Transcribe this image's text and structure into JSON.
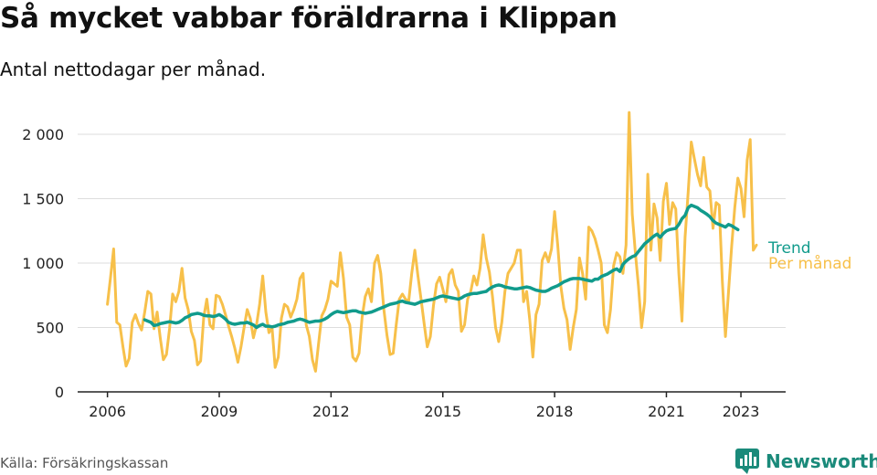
{
  "header": {
    "title": "Så mycket vabbar föräldrarna i Klippan",
    "subtitle": "Antal nettodagar per månad."
  },
  "footer": {
    "source": "Källa: Försäkringskassan",
    "brand": "Newsworthy",
    "brand_color": "#1a8a7a"
  },
  "chart_data": {
    "type": "line",
    "title": "Så mycket vabbar föräldrarna i Klippan",
    "subtitle": "Antal nettodagar per månad.",
    "xlabel": "",
    "ylabel": "",
    "x_start": "2006-01",
    "x_ticks": [
      "2006",
      "2009",
      "2012",
      "2015",
      "2018",
      "2021",
      "2023"
    ],
    "x_tick_years": [
      2006,
      2009,
      2012,
      2015,
      2018,
      2021,
      2023
    ],
    "y_ticks": [
      0,
      500,
      1000,
      1500,
      2000
    ],
    "y_tick_labels": [
      "0",
      "500",
      "1 000",
      "1 500",
      "2 000"
    ],
    "ylim": [
      0,
      2050
    ],
    "xlim": [
      2005.2,
      2024.2
    ],
    "grid": true,
    "legend": "right-end labels",
    "series": [
      {
        "name": "Per månad",
        "color": "#f7c04a",
        "start": "2006-01",
        "values": [
          680,
          890,
          1110,
          540,
          520,
          350,
          200,
          260,
          540,
          600,
          530,
          480,
          620,
          780,
          760,
          490,
          620,
          420,
          250,
          290,
          490,
          760,
          700,
          780,
          960,
          730,
          640,
          470,
          400,
          210,
          240,
          580,
          720,
          520,
          490,
          750,
          740,
          680,
          600,
          510,
          430,
          340,
          230,
          350,
          500,
          640,
          570,
          420,
          520,
          680,
          900,
          620,
          460,
          500,
          190,
          270,
          570,
          680,
          660,
          580,
          640,
          720,
          880,
          920,
          520,
          430,
          250,
          160,
          380,
          590,
          640,
          720,
          860,
          840,
          820,
          1080,
          880,
          580,
          520,
          270,
          240,
          300,
          580,
          740,
          800,
          700,
          1000,
          1060,
          920,
          640,
          440,
          290,
          300,
          520,
          720,
          760,
          720,
          700,
          920,
          1100,
          900,
          720,
          530,
          350,
          430,
          670,
          840,
          890,
          800,
          700,
          910,
          950,
          830,
          780,
          470,
          520,
          720,
          780,
          900,
          830,
          960,
          1220,
          1040,
          930,
          740,
          500,
          390,
          540,
          780,
          920,
          960,
          1000,
          1100,
          1100,
          700,
          780,
          560,
          270,
          600,
          680,
          1020,
          1080,
          1010,
          1110,
          1400,
          1140,
          820,
          650,
          560,
          330,
          500,
          640,
          1040,
          920,
          720,
          1280,
          1250,
          1190,
          1100,
          1000,
          520,
          460,
          640,
          980,
          1080,
          1050,
          920,
          1140,
          2170,
          1380,
          1080,
          820,
          500,
          700,
          1690,
          1100,
          1460,
          1350,
          1020,
          1480,
          1620,
          1300,
          1470,
          1420,
          920,
          550,
          1200,
          1550,
          1940,
          1810,
          1690,
          1600,
          1820,
          1590,
          1560,
          1270,
          1470,
          1450,
          860,
          430,
          780,
          1130,
          1430,
          1660,
          1580,
          1360,
          1800,
          1960,
          1100,
          1140
        ]
      },
      {
        "name": "Trend",
        "color": "#119b8c",
        "start": "2007-01",
        "values": [
          560,
          550,
          540,
          515,
          520,
          530,
          535,
          540,
          545,
          540,
          535,
          540,
          555,
          575,
          585,
          600,
          605,
          610,
          605,
          595,
          590,
          590,
          585,
          590,
          600,
          585,
          565,
          540,
          530,
          525,
          530,
          535,
          535,
          540,
          530,
          520,
          500,
          515,
          525,
          510,
          510,
          505,
          510,
          520,
          525,
          530,
          540,
          545,
          550,
          560,
          565,
          560,
          550,
          540,
          545,
          550,
          550,
          555,
          565,
          580,
          600,
          615,
          625,
          620,
          615,
          620,
          625,
          630,
          630,
          620,
          615,
          610,
          615,
          620,
          630,
          640,
          650,
          660,
          670,
          680,
          685,
          690,
          700,
          705,
          695,
          690,
          685,
          680,
          690,
          700,
          705,
          710,
          715,
          720,
          730,
          740,
          745,
          740,
          735,
          730,
          725,
          720,
          730,
          745,
          755,
          760,
          765,
          765,
          770,
          775,
          780,
          800,
          815,
          825,
          830,
          825,
          815,
          810,
          805,
          800,
          800,
          805,
          810,
          815,
          810,
          800,
          790,
          785,
          780,
          780,
          790,
          805,
          815,
          825,
          840,
          855,
          865,
          875,
          880,
          880,
          880,
          875,
          870,
          865,
          860,
          875,
          875,
          895,
          905,
          915,
          930,
          945,
          955,
          935,
          990,
          1015,
          1035,
          1050,
          1060,
          1090,
          1120,
          1150,
          1170,
          1190,
          1210,
          1225,
          1200,
          1230,
          1250,
          1260,
          1265,
          1270,
          1300,
          1345,
          1370,
          1430,
          1450,
          1440,
          1430,
          1410,
          1395,
          1380,
          1360,
          1330,
          1310,
          1300,
          1290,
          1280,
          1300,
          1290,
          1275,
          1260
        ]
      }
    ]
  }
}
